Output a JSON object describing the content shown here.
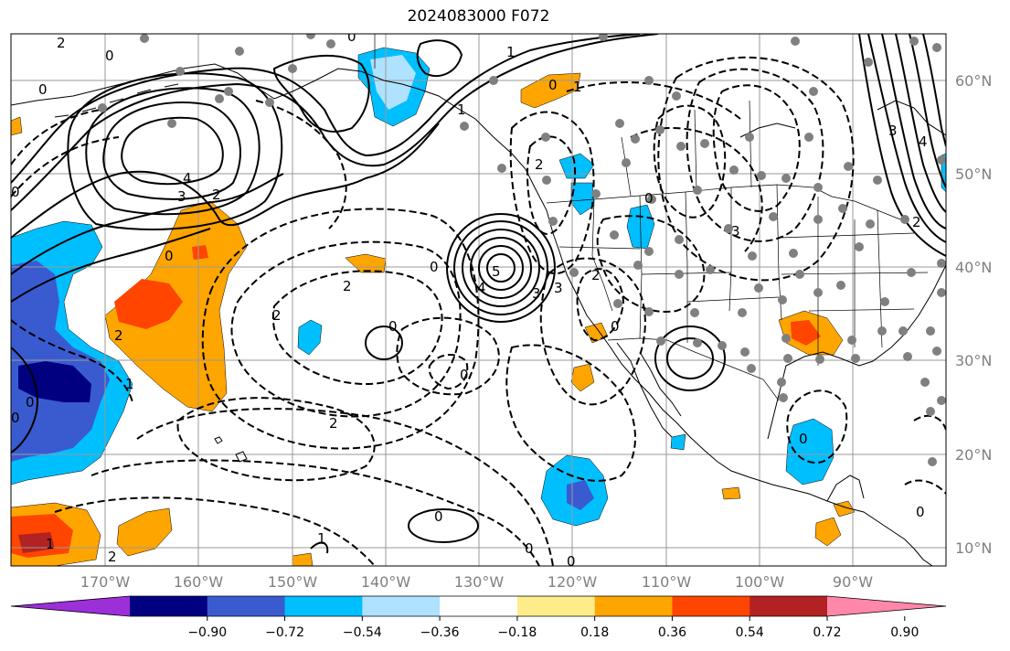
{
  "title": "2024083000 F072",
  "lon_labels": [
    "170°W",
    "160°W",
    "150°W",
    "140°W",
    "130°W",
    "120°W",
    "110°W",
    "100°W",
    "90°W"
  ],
  "lat_labels": [
    "60°N",
    "50°N",
    "40°N",
    "30°N",
    "20°N",
    "10°N"
  ],
  "colorbar": {
    "colors": [
      "#9b30d9",
      "#000080",
      "#3a5bd0",
      "#00bfff",
      "#aee2ff",
      "#ffffff",
      "#ffec8b",
      "#ffa500",
      "#ff4500",
      "#b22222",
      "#ff88aa"
    ],
    "tick_labels": [
      "−0.90",
      "−0.72",
      "−0.54",
      "−0.36",
      "−0.18",
      "0.18",
      "0.36",
      "0.54",
      "0.72",
      "0.90"
    ]
  },
  "contour_labels": [
    "2",
    "0",
    "0",
    "0",
    "4",
    "3",
    "2",
    "0",
    "2",
    "2",
    "0",
    "0",
    "0",
    "2",
    "5",
    "4",
    "3",
    "2",
    "1",
    "0",
    "0",
    "1",
    "2",
    "1",
    "0",
    "0",
    "0",
    "0",
    "1",
    "0",
    "1",
    "3",
    "4",
    "3",
    "2",
    "0",
    "0",
    "2",
    "2",
    "3",
    "0",
    "1",
    "0"
  ]
}
